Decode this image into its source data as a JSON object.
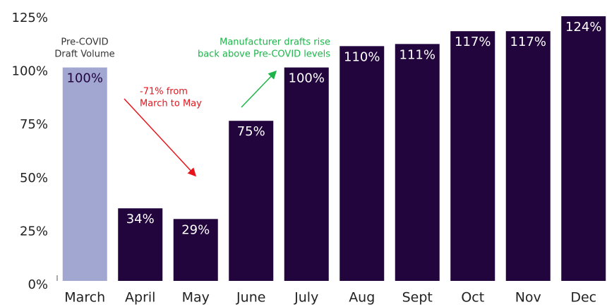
{
  "chart_data": {
    "type": "bar",
    "categories": [
      "March",
      "April",
      "May",
      "June",
      "July",
      "Aug",
      "Sept",
      "Oct",
      "Nov",
      "Dec"
    ],
    "values": [
      100,
      34,
      29,
      75,
      100,
      110,
      111,
      117,
      117,
      124
    ],
    "value_labels": [
      "100%",
      "34%",
      "29%",
      "75%",
      "100%",
      "110%",
      "111%",
      "117%",
      "117%",
      "124%"
    ],
    "colors": [
      "#a1a7d1",
      "#22053d",
      "#22053d",
      "#22053d",
      "#22053d",
      "#22053d",
      "#22053d",
      "#22053d",
      "#22053d",
      "#22053d"
    ],
    "ylim": [
      0,
      125
    ],
    "yticks": [
      {
        "value": 0,
        "label": "0%"
      },
      {
        "value": 25,
        "label": "25%"
      },
      {
        "value": 50,
        "label": "50%"
      },
      {
        "value": 75,
        "label": "75%"
      },
      {
        "value": 100,
        "label": "100%"
      },
      {
        "value": 125,
        "label": "125%"
      }
    ],
    "grid": false,
    "annotations": [
      {
        "lines": [
          "Pre-COVID",
          "Draft Volume"
        ],
        "color": "#333333"
      },
      {
        "lines": [
          "-71% from",
          "March to May"
        ],
        "color": "#e8141c"
      },
      {
        "lines": [
          "Manufacturer drafts rise",
          "back above Pre-COVID levels"
        ],
        "color": "#1db54a"
      }
    ]
  }
}
